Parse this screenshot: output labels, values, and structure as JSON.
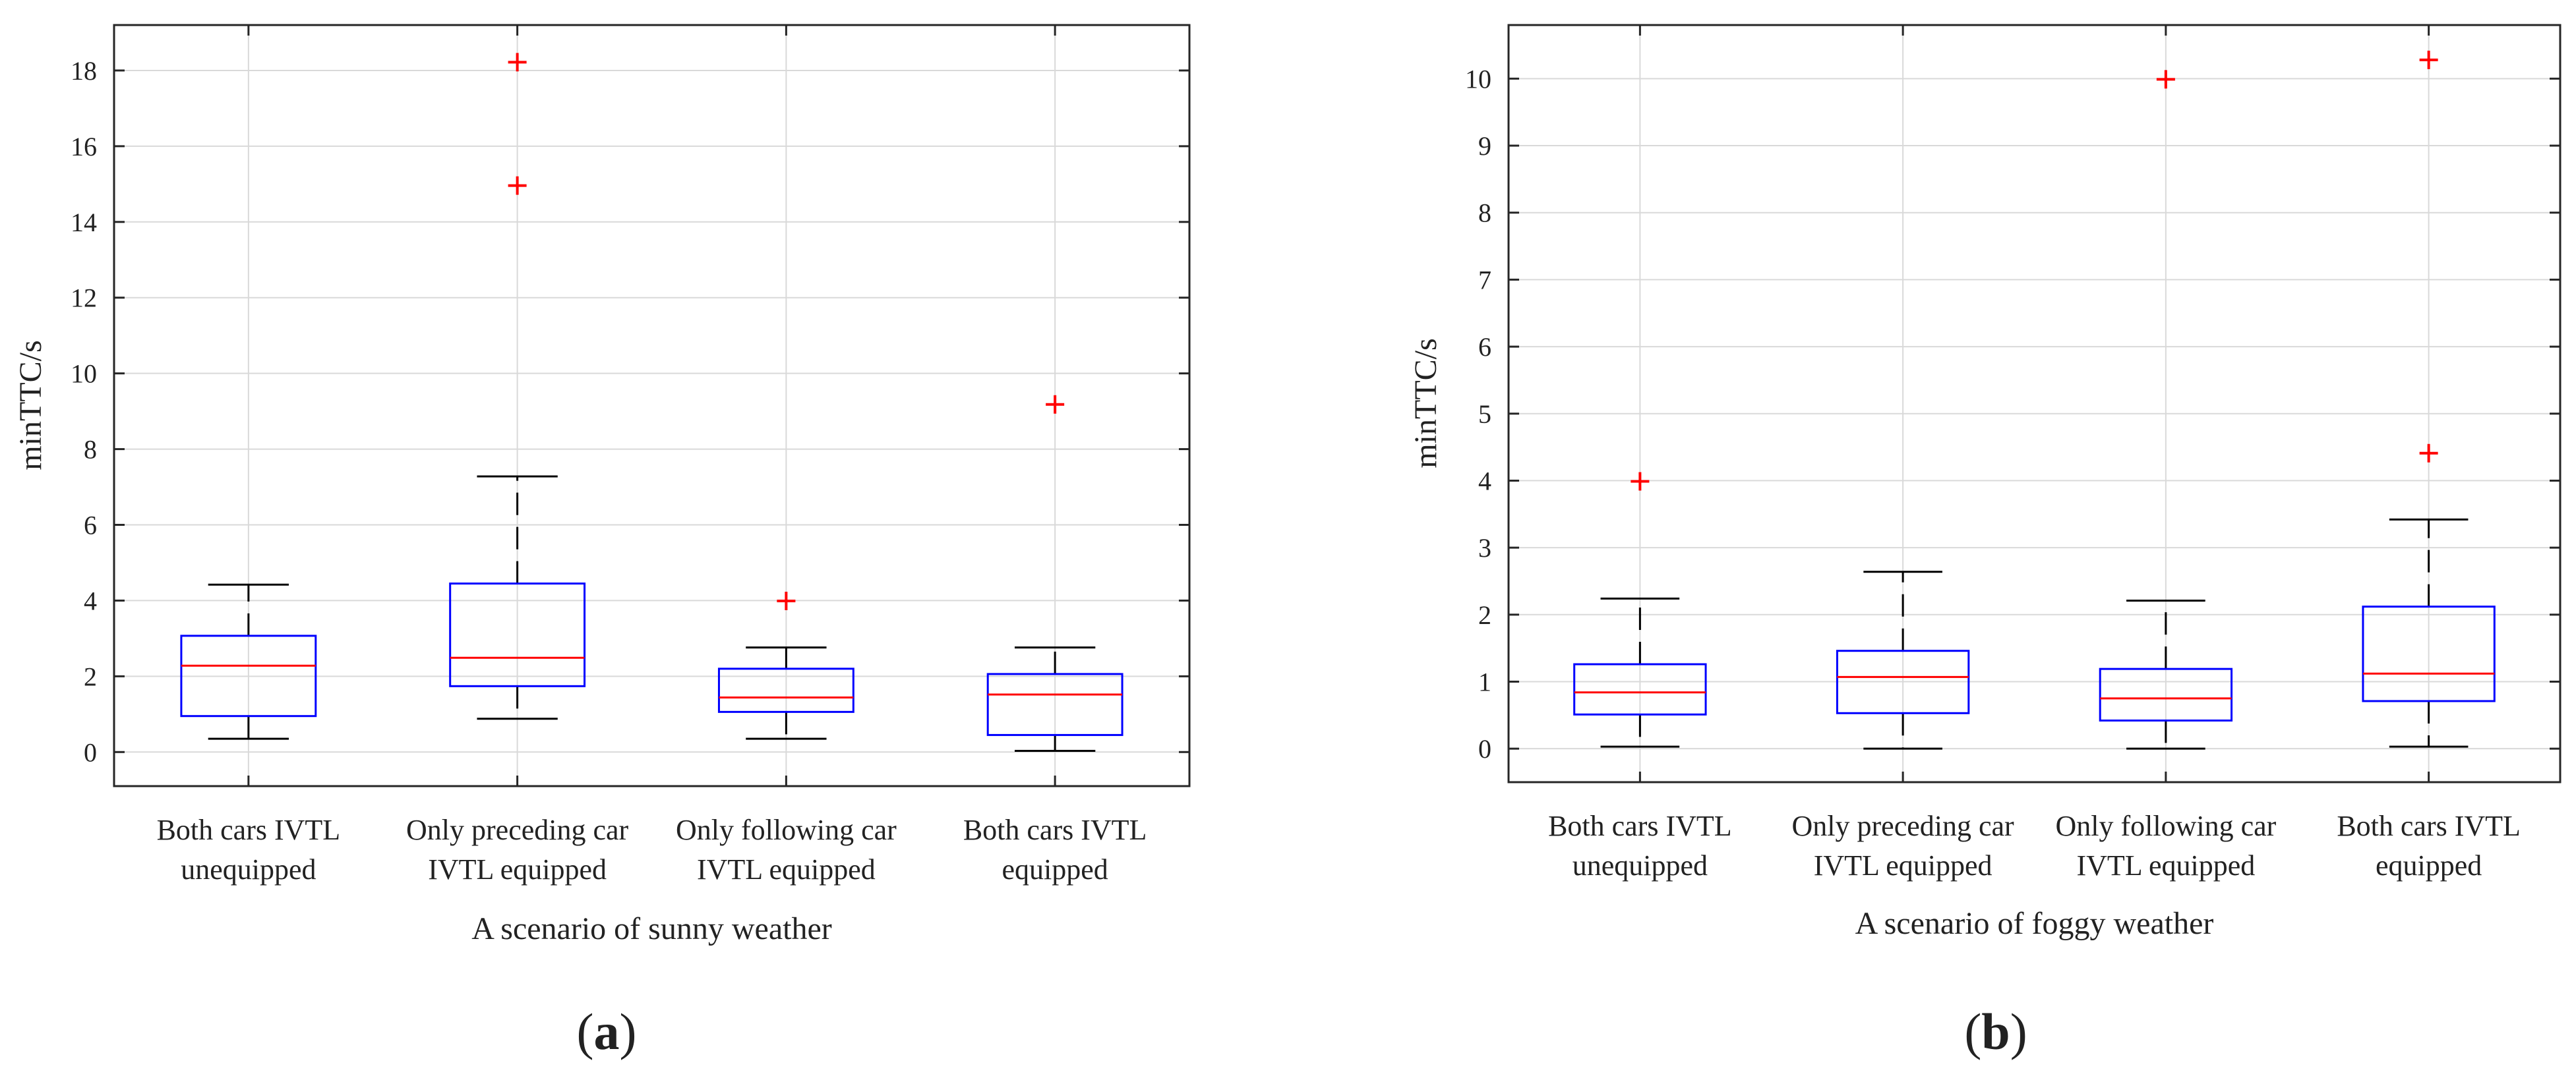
{
  "figure": {
    "panel_labels": [
      {
        "open": "(",
        "letter": "a",
        "close": ")"
      },
      {
        "open": "(",
        "letter": "b",
        "close": ")"
      }
    ]
  },
  "colors": {
    "box": "#0000ff",
    "median": "#ff0000",
    "outlier": "#ff0000",
    "whisker": "#000000",
    "grid": "#d9d9d9",
    "axes": "#262626"
  },
  "chart_data": [
    {
      "type": "box",
      "title": "",
      "xlabel": "A scenario of sunny weather",
      "ylabel": "minTTC/s",
      "ylim": [
        -0.9,
        19.2
      ],
      "yticks": [
        0,
        2,
        4,
        6,
        8,
        10,
        12,
        14,
        16,
        18
      ],
      "grid": true,
      "categories": [
        [
          "Both cars IVTL",
          "unequipped"
        ],
        [
          "Only preceding car",
          "IVTL equipped"
        ],
        [
          "Only following car",
          "IVTL equipped"
        ],
        [
          "Both cars IVTL",
          "equipped"
        ]
      ],
      "boxes": [
        {
          "whisker_low": 0.35,
          "q1": 0.95,
          "median": 2.28,
          "q3": 3.07,
          "whisker_high": 4.42,
          "outliers": []
        },
        {
          "whisker_low": 0.88,
          "q1": 1.74,
          "median": 2.49,
          "q3": 4.45,
          "whisker_high": 7.28,
          "outliers": [
            18.22,
            14.96
          ]
        },
        {
          "whisker_low": 0.35,
          "q1": 1.06,
          "median": 1.44,
          "q3": 2.2,
          "whisker_high": 2.76,
          "outliers": [
            3.99
          ]
        },
        {
          "whisker_low": 0.03,
          "q1": 0.45,
          "median": 1.52,
          "q3": 2.06,
          "whisker_high": 2.76,
          "outliers": [
            9.18
          ]
        }
      ]
    },
    {
      "type": "box",
      "title": "",
      "xlabel": "A scenario of foggy weather",
      "ylabel": "minTTC/s",
      "ylim": [
        -0.5,
        10.8
      ],
      "yticks": [
        0,
        1,
        2,
        3,
        4,
        5,
        6,
        7,
        8,
        9,
        10
      ],
      "grid": true,
      "categories": [
        [
          "Both cars IVTL",
          "unequipped"
        ],
        [
          "Only preceding car",
          "IVTL equipped"
        ],
        [
          "Only following car",
          "IVTL equipped"
        ],
        [
          "Both cars IVTL",
          "equipped"
        ]
      ],
      "boxes": [
        {
          "whisker_low": 0.03,
          "q1": 0.51,
          "median": 0.84,
          "q3": 1.26,
          "whisker_high": 2.24,
          "outliers": [
            3.99
          ]
        },
        {
          "whisker_low": 0.0,
          "q1": 0.53,
          "median": 1.07,
          "q3": 1.46,
          "whisker_high": 2.64,
          "outliers": []
        },
        {
          "whisker_low": 0.0,
          "q1": 0.42,
          "median": 0.75,
          "q3": 1.19,
          "whisker_high": 2.21,
          "outliers": [
            9.99
          ]
        },
        {
          "whisker_low": 0.03,
          "q1": 0.71,
          "median": 1.12,
          "q3": 2.12,
          "whisker_high": 3.42,
          "outliers": [
            10.28,
            4.41
          ]
        }
      ]
    }
  ]
}
